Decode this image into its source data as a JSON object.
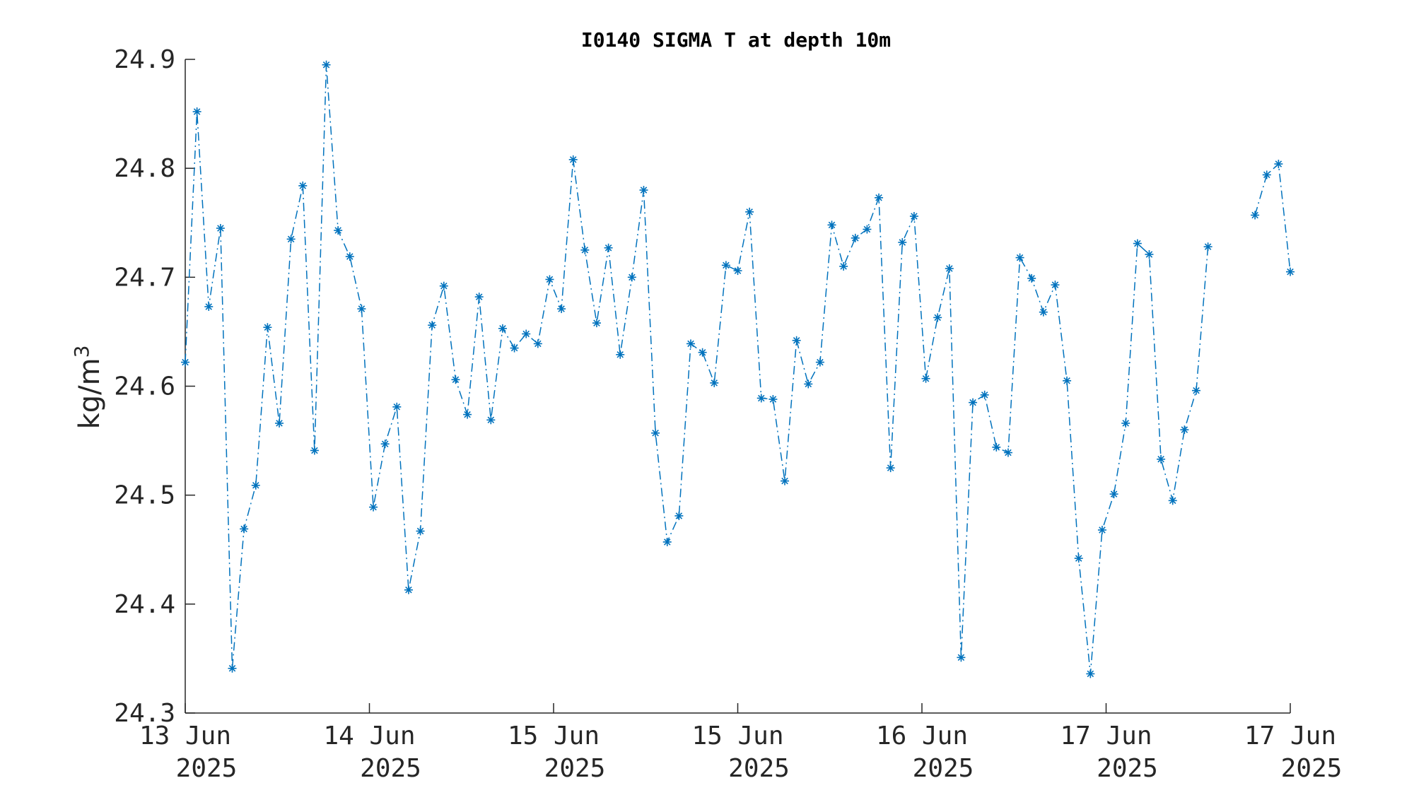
{
  "chart_data": {
    "type": "line",
    "title": "I0140 SIGMA T at depth 10m",
    "ylabel": "kg/m",
    "ylabel_superscript": "3",
    "xlabel": "",
    "ylim": [
      24.3,
      24.9
    ],
    "yticks": [
      "24.3",
      "24.4",
      "24.5",
      "24.6",
      "24.7",
      "24.8",
      "24.9"
    ],
    "xticks": [
      {
        "line1": "13 Jun",
        "line2": "2025"
      },
      {
        "line1": "14 Jun",
        "line2": "2025"
      },
      {
        "line1": "15 Jun",
        "line2": "2025"
      },
      {
        "line1": "15 Jun",
        "line2": "2025"
      },
      {
        "line1": "16 Jun",
        "line2": "2025"
      },
      {
        "line1": "17 Jun",
        "line2": "2025"
      },
      {
        "line1": "17 Jun",
        "line2": "2025"
      }
    ],
    "grid": false,
    "color": "#0072BD",
    "line_style": "dash-dot",
    "marker": "asterisk",
    "series": [
      {
        "values": [
          24.622,
          24.852,
          24.673,
          24.745,
          24.341,
          24.469,
          24.509,
          24.654,
          24.566,
          24.735,
          24.784,
          24.541,
          24.895,
          24.743,
          24.719,
          24.671,
          24.489,
          24.547,
          24.581,
          24.413,
          24.467,
          24.656,
          24.692,
          24.606,
          24.574,
          24.682,
          24.569,
          24.653,
          24.635,
          24.648,
          24.639,
          24.698,
          24.671,
          24.808,
          24.725,
          24.658,
          24.727,
          24.629,
          24.7,
          24.78,
          24.557,
          24.457,
          24.481,
          24.639,
          24.631,
          24.603,
          24.711,
          24.706,
          24.76,
          24.589,
          24.588,
          24.513,
          24.642,
          24.602,
          24.622,
          24.748,
          24.71,
          24.736,
          24.744,
          24.773,
          24.525,
          24.732,
          24.756,
          24.607,
          24.663,
          24.708,
          24.351,
          24.585,
          24.592,
          24.544,
          24.539,
          24.718,
          24.699,
          24.668,
          24.693,
          24.605,
          24.442,
          24.336,
          24.468,
          24.501,
          24.566,
          24.731,
          24.721,
          24.533,
          24.495,
          24.56,
          24.596,
          24.728,
          null,
          null,
          null,
          24.757,
          24.794,
          24.804,
          24.705
        ]
      }
    ]
  }
}
